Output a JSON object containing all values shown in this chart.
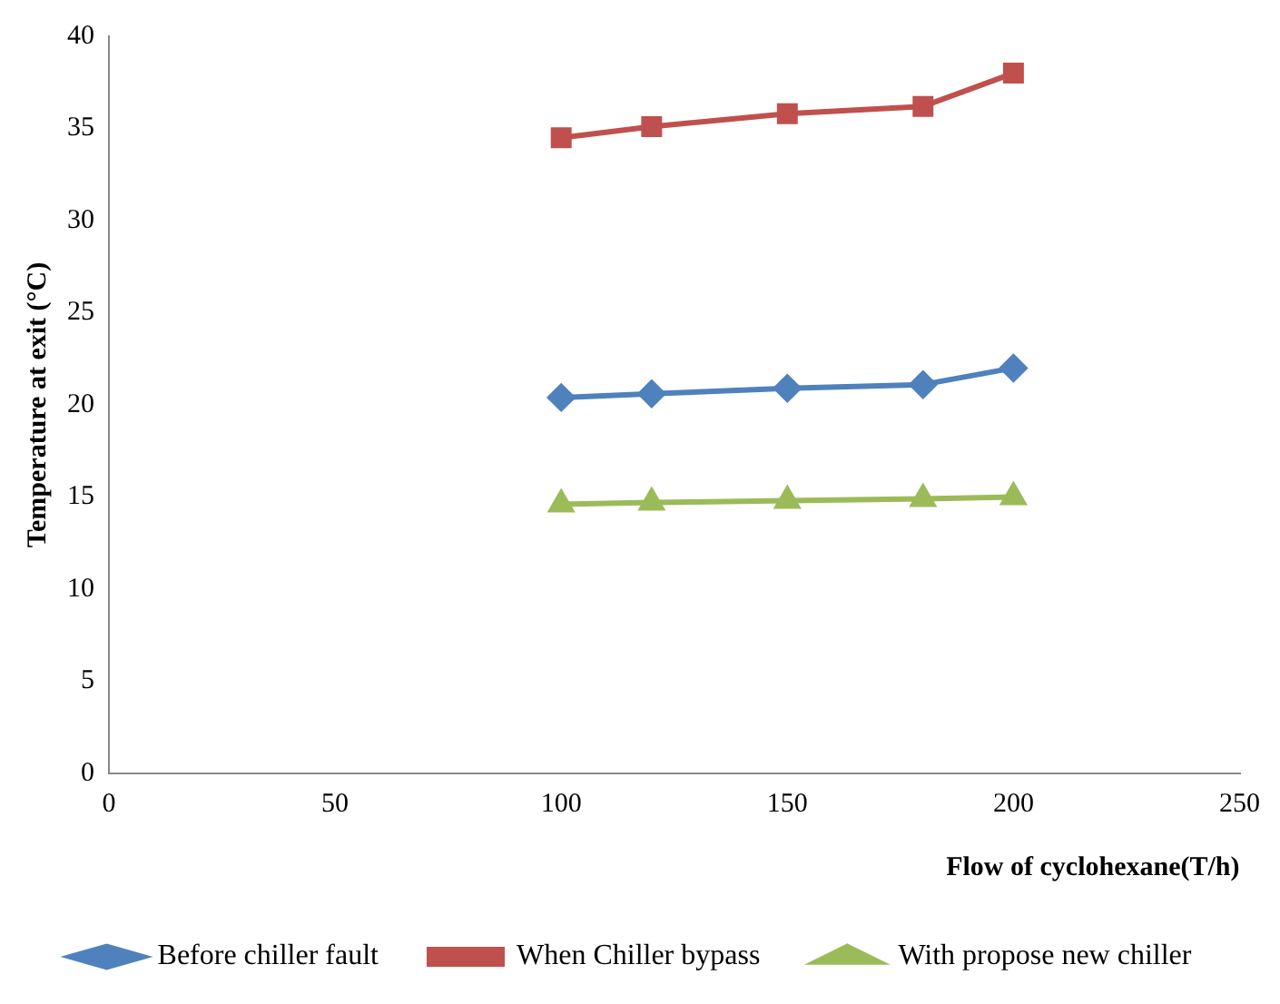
{
  "chart_data": {
    "type": "line",
    "xlabel": "Flow of cyclohexane(T/h)",
    "ylabel": "Temperature at exit (°C)",
    "xlim": [
      0,
      250
    ],
    "xticks": [
      0,
      50,
      100,
      150,
      200,
      250
    ],
    "ylim": [
      0,
      40
    ],
    "yticks": [
      0,
      5,
      10,
      15,
      20,
      25,
      30,
      35,
      40
    ],
    "grid": false,
    "legend": "bottom",
    "line_style": "solid",
    "series": [
      {
        "name": "Before chiller fault",
        "color": "#4f81bd",
        "marker": "diamond",
        "x": [
          100,
          120,
          150,
          180,
          200
        ],
        "values": [
          20.4,
          20.6,
          20.9,
          21.1,
          22.0
        ]
      },
      {
        "name": "When Chiller bypass",
        "color": "#c0504d",
        "marker": "square",
        "x": [
          100,
          120,
          150,
          180,
          200
        ],
        "values": [
          34.5,
          35.1,
          35.8,
          36.2,
          38.0
        ]
      },
      {
        "name": "With propose new chiller",
        "color": "#9bbb59",
        "marker": "triangle",
        "x": [
          100,
          120,
          150,
          180,
          200
        ],
        "values": [
          14.6,
          14.7,
          14.8,
          14.9,
          15.0
        ]
      }
    ]
  }
}
